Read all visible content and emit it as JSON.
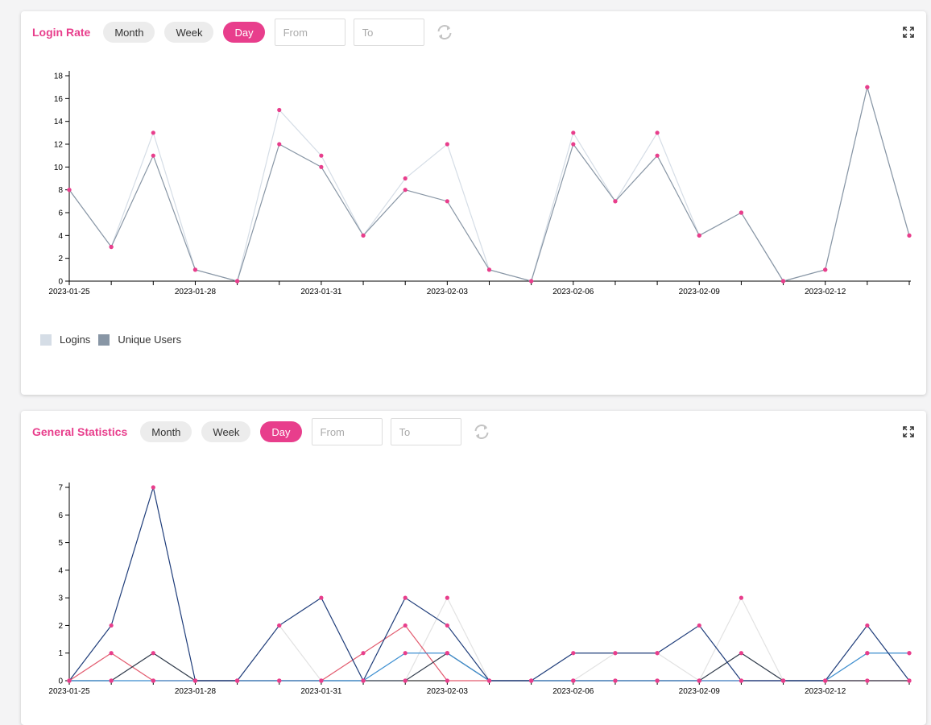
{
  "panels": [
    {
      "title": "Login Rate",
      "ranges": [
        "Month",
        "Week",
        "Day"
      ],
      "active_range": "Day",
      "from_placeholder": "From",
      "to_placeholder": "To",
      "legend": [
        {
          "label": "Logins",
          "color": "#d5dde6"
        },
        {
          "label": "Unique Users",
          "color": "#8896a5"
        }
      ]
    },
    {
      "title": "General Statistics",
      "ranges": [
        "Month",
        "Week",
        "Day"
      ],
      "active_range": "Day",
      "from_placeholder": "From",
      "to_placeholder": "To"
    }
  ],
  "colors": {
    "accent": "#e83e8c",
    "point": "#e83e8c"
  },
  "chart_data": [
    {
      "type": "line",
      "x": [
        "2023-01-25",
        "2023-01-26",
        "2023-01-27",
        "2023-01-28",
        "2023-01-29",
        "2023-01-30",
        "2023-01-31",
        "2023-02-01",
        "2023-02-02",
        "2023-02-03",
        "2023-02-04",
        "2023-02-05",
        "2023-02-06",
        "2023-02-07",
        "2023-02-08",
        "2023-02-09",
        "2023-02-10",
        "2023-02-11",
        "2023-02-12",
        "2023-02-13",
        "2023-02-14"
      ],
      "x_tick_labels": [
        "2023-01-25",
        "2023-01-28",
        "2023-01-31",
        "2023-02-03",
        "2023-02-06",
        "2023-02-09",
        "2023-02-12"
      ],
      "series": [
        {
          "name": "Logins",
          "color": "#d5dde6",
          "values": [
            8,
            3,
            13,
            1,
            0,
            15,
            11,
            4,
            9,
            12,
            1,
            0,
            13,
            7,
            13,
            4,
            6,
            0,
            1,
            17,
            4
          ]
        },
        {
          "name": "Unique Users",
          "color": "#8896a5",
          "values": [
            8,
            3,
            11,
            1,
            0,
            12,
            10,
            4,
            8,
            7,
            1,
            0,
            12,
            7,
            11,
            4,
            6,
            0,
            1,
            17,
            4
          ]
        }
      ],
      "ylim": [
        0,
        18
      ],
      "yticks": [
        0,
        2,
        4,
        6,
        8,
        10,
        12,
        14,
        16,
        18
      ],
      "legend": "bottom-left",
      "grid": false
    },
    {
      "type": "line",
      "x": [
        "2023-01-25",
        "2023-01-26",
        "2023-01-27",
        "2023-01-28",
        "2023-01-29",
        "2023-01-30",
        "2023-01-31",
        "2023-02-01",
        "2023-02-02",
        "2023-02-03",
        "2023-02-04",
        "2023-02-05",
        "2023-02-06",
        "2023-02-07",
        "2023-02-08",
        "2023-02-09",
        "2023-02-10",
        "2023-02-11",
        "2023-02-12",
        "2023-02-13",
        "2023-02-14"
      ],
      "x_tick_labels": [
        "2023-01-25",
        "2023-01-28",
        "2023-01-31",
        "2023-02-03",
        "2023-02-06",
        "2023-02-09",
        "2023-02-12"
      ],
      "series": [
        {
          "color": "#e2e2e2",
          "values": [
            0,
            0,
            0,
            0,
            0,
            2,
            0,
            0,
            0,
            3,
            0,
            0,
            0,
            1,
            1,
            0,
            3,
            0,
            0,
            1,
            1
          ]
        },
        {
          "color": "#e25a6e",
          "values": [
            0,
            1,
            0,
            0,
            0,
            0,
            0,
            1,
            2,
            0,
            0,
            0,
            0,
            0,
            0,
            0,
            0,
            0,
            0,
            0,
            0
          ]
        },
        {
          "color": "#2f3a4a",
          "values": [
            0,
            0,
            1,
            0,
            0,
            0,
            0,
            0,
            0,
            1,
            0,
            0,
            0,
            0,
            0,
            0,
            1,
            0,
            0,
            0,
            0
          ]
        },
        {
          "color": "#3d8fd1",
          "values": [
            0,
            0,
            0,
            0,
            0,
            0,
            0,
            0,
            1,
            1,
            0,
            0,
            0,
            0,
            0,
            0,
            0,
            0,
            0,
            1,
            1
          ]
        },
        {
          "color": "#1f3d7a",
          "values": [
            0,
            2,
            7,
            0,
            0,
            2,
            3,
            0,
            3,
            2,
            0,
            0,
            1,
            1,
            1,
            2,
            0,
            0,
            0,
            2,
            0
          ]
        }
      ],
      "ylim": [
        0,
        7
      ],
      "yticks": [
        0,
        1,
        2,
        3,
        4,
        5,
        6,
        7
      ],
      "grid": false
    }
  ]
}
